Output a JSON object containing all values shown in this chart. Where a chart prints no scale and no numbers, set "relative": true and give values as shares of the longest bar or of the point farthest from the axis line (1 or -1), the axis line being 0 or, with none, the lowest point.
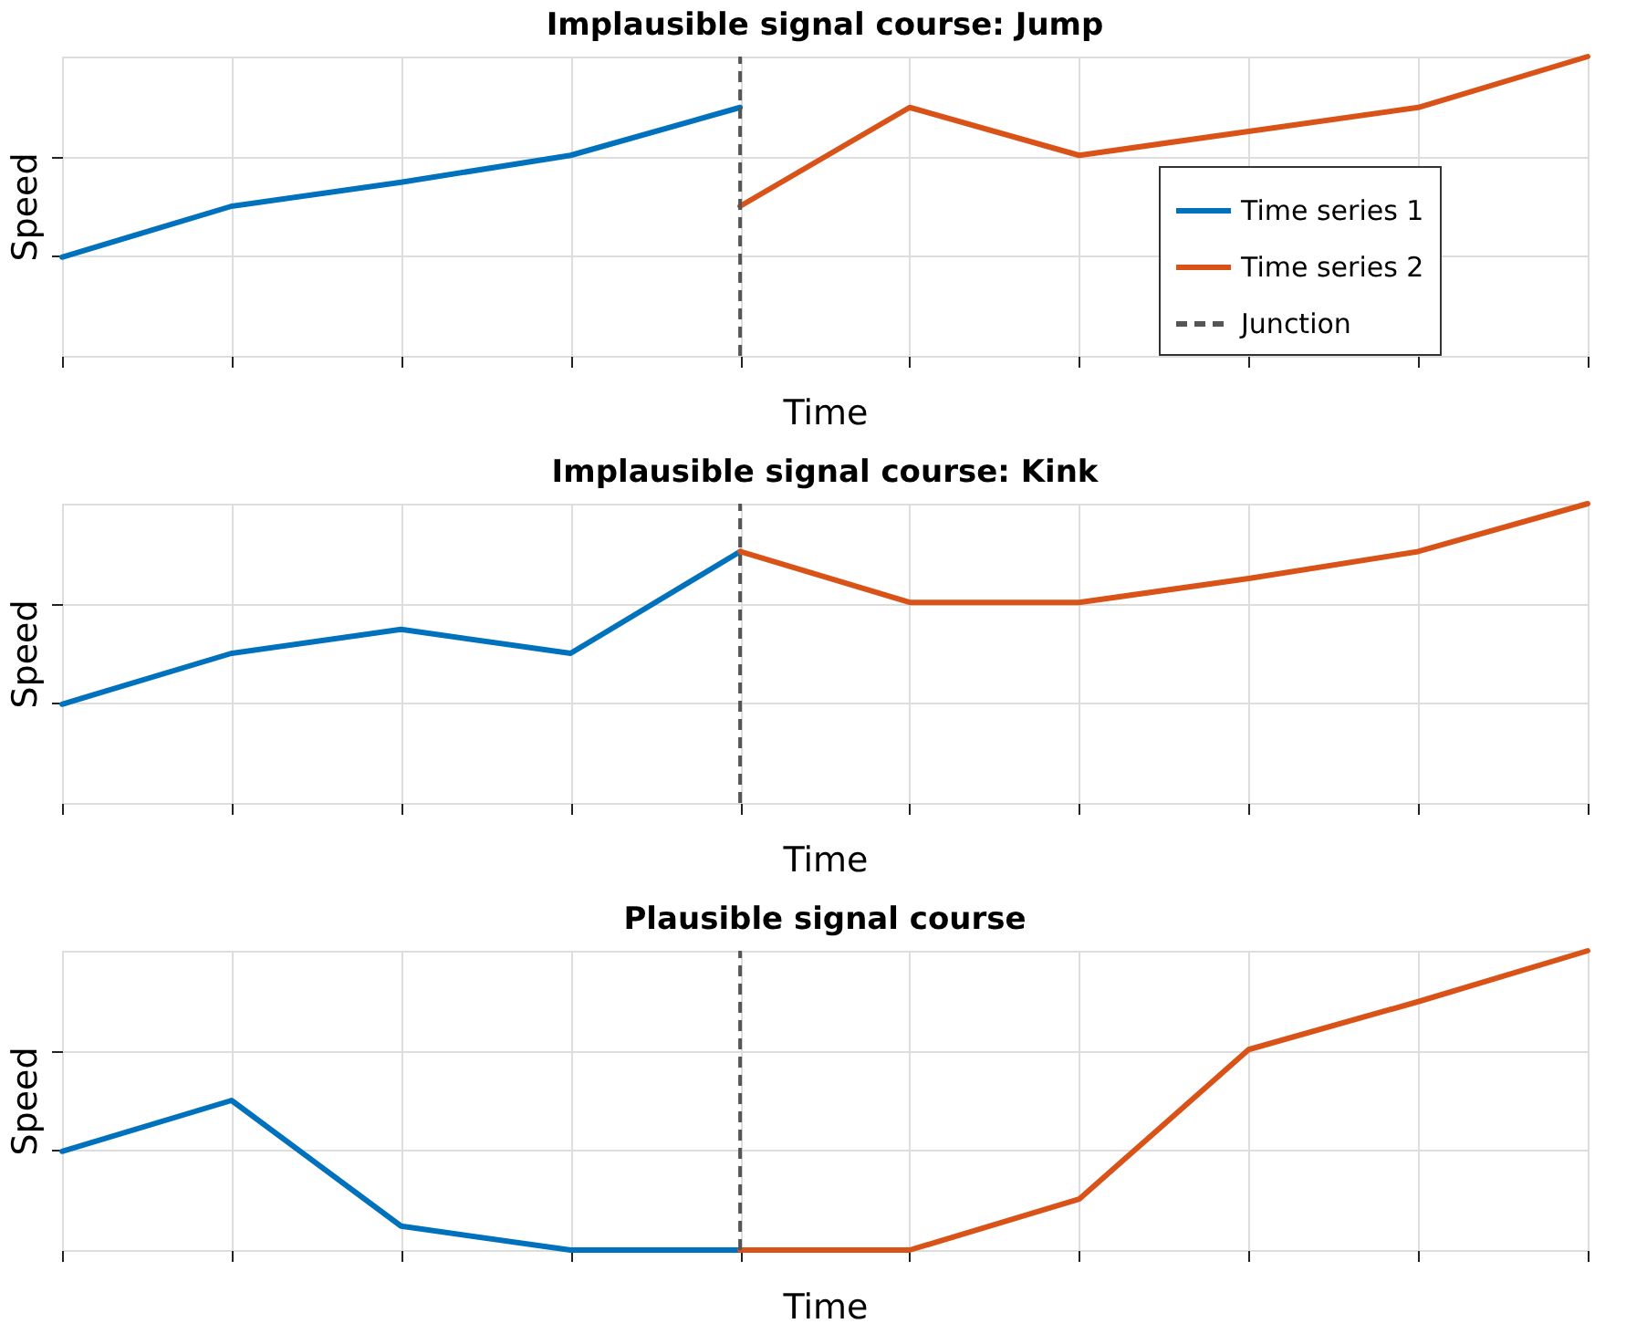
{
  "chart_data": [
    {
      "type": "line",
      "title": "Implausible signal course: Jump",
      "xlabel": "Time",
      "ylabel": "Speed",
      "relative": true,
      "categories": [
        null,
        null,
        null,
        null,
        null,
        null,
        null,
        null,
        null,
        null
      ],
      "grid": true,
      "legend": "right",
      "line_style": "solid",
      "series": [
        {
          "name": "Time series 1",
          "color": "#0072bd",
          "values": [
            0.33,
            0.5,
            0.58,
            0.67,
            0.83,
            null,
            null,
            null,
            null,
            null
          ]
        },
        {
          "name": "Time series 2",
          "color": "#d95319",
          "values": [
            null,
            null,
            null,
            null,
            0.5,
            0.83,
            0.67,
            0.75,
            0.83,
            1.0
          ]
        }
      ],
      "ref_lines": [
        {
          "axis": "x",
          "label": "Junction",
          "color": "#555555",
          "line_style": "dashed"
        }
      ]
    },
    {
      "type": "line",
      "title": "Implausible signal course: Kink",
      "xlabel": "Time",
      "ylabel": "Speed",
      "relative": true,
      "categories": [
        null,
        null,
        null,
        null,
        null,
        null,
        null,
        null,
        null,
        null
      ],
      "grid": true,
      "legend": false,
      "line_style": "solid",
      "series": [
        {
          "color": "#0072bd",
          "values": [
            0.33,
            0.5,
            0.58,
            0.5,
            0.84,
            null,
            null,
            null,
            null,
            null
          ]
        },
        {
          "color": "#d95319",
          "values": [
            null,
            null,
            null,
            null,
            0.84,
            0.67,
            0.67,
            0.75,
            0.84,
            1.0
          ]
        }
      ],
      "ref_lines": [
        {
          "axis": "x",
          "color": "#555555",
          "line_style": "dashed"
        }
      ]
    },
    {
      "type": "line",
      "title": "Plausible signal course",
      "xlabel": "Time",
      "ylabel": "Speed",
      "relative": true,
      "categories": [
        null,
        null,
        null,
        null,
        null,
        null,
        null,
        null,
        null,
        null
      ],
      "grid": true,
      "legend": false,
      "line_style": "solid",
      "series": [
        {
          "color": "#0072bd",
          "values": [
            0.33,
            0.5,
            0.08,
            0,
            0,
            null,
            null,
            null,
            null,
            null
          ]
        },
        {
          "color": "#d95319",
          "values": [
            null,
            null,
            null,
            null,
            0,
            0,
            0.17,
            0.67,
            0.83,
            1.0
          ]
        }
      ],
      "ref_lines": [
        {
          "axis": "x",
          "color": "#555555",
          "line_style": "dashed"
        }
      ]
    }
  ]
}
